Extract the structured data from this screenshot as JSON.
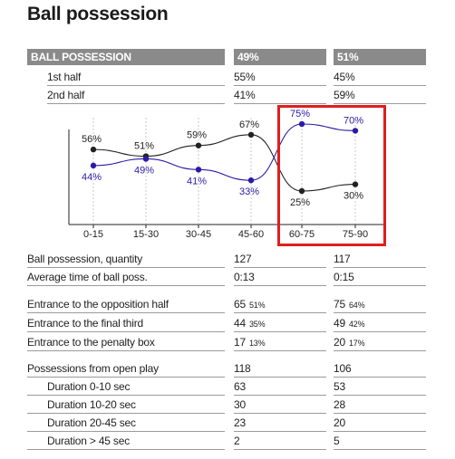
{
  "title": "Ball possession",
  "header": {
    "label": "BALL POSSESSION",
    "team1": "49%",
    "team2": "51%"
  },
  "halves": [
    {
      "label": "1st half",
      "team1": "55%",
      "team2": "45%"
    },
    {
      "label": "2nd half",
      "team1": "41%",
      "team2": "59%"
    }
  ],
  "chart_data": {
    "type": "line",
    "categories": [
      "0-15",
      "15-30",
      "30-45",
      "45-60",
      "60-75",
      "75-90"
    ],
    "series": [
      {
        "values": [
          56,
          51,
          59,
          67,
          25,
          30
        ],
        "labels": [
          "56%",
          "51%",
          "59%",
          "67%",
          "25%",
          "30%"
        ],
        "color": "#222222"
      },
      {
        "values": [
          44,
          49,
          41,
          33,
          75,
          70
        ],
        "labels": [
          "44%",
          "49%",
          "41%",
          "33%",
          "75%",
          "70%"
        ],
        "color": "#2a1aa8"
      }
    ],
    "ylim": [
      0,
      100
    ]
  },
  "stats": [
    {
      "label": "Ball possession, quantity",
      "team1": "127",
      "team2": "117"
    },
    {
      "label": "Average time of ball poss.",
      "team1": "0:13",
      "team2": "0:15"
    }
  ],
  "entrances": [
    {
      "label": "Entrance to the opposition half",
      "team1": "65",
      "team1_pct": "51%",
      "team2": "75",
      "team2_pct": "64%"
    },
    {
      "label": "Entrance to the final third",
      "team1": "44",
      "team1_pct": "35%",
      "team2": "49",
      "team2_pct": "42%"
    },
    {
      "label": "Entrance to the penalty box",
      "team1": "17",
      "team1_pct": "13%",
      "team2": "20",
      "team2_pct": "17%"
    }
  ],
  "possessions": [
    {
      "label": "Possessions from open play",
      "team1": "118",
      "team2": "106",
      "indent": false
    },
    {
      "label": "Duration  0-10 sec",
      "team1": "63",
      "team2": "53",
      "indent": true
    },
    {
      "label": "Duration  10-20 sec",
      "team1": "30",
      "team2": "28",
      "indent": true
    },
    {
      "label": "Duration  20-45 sec",
      "team1": "23",
      "team2": "20",
      "indent": true
    },
    {
      "label": "Duration  > 45 sec",
      "team1": "2",
      "team2": "5",
      "indent": true
    }
  ]
}
